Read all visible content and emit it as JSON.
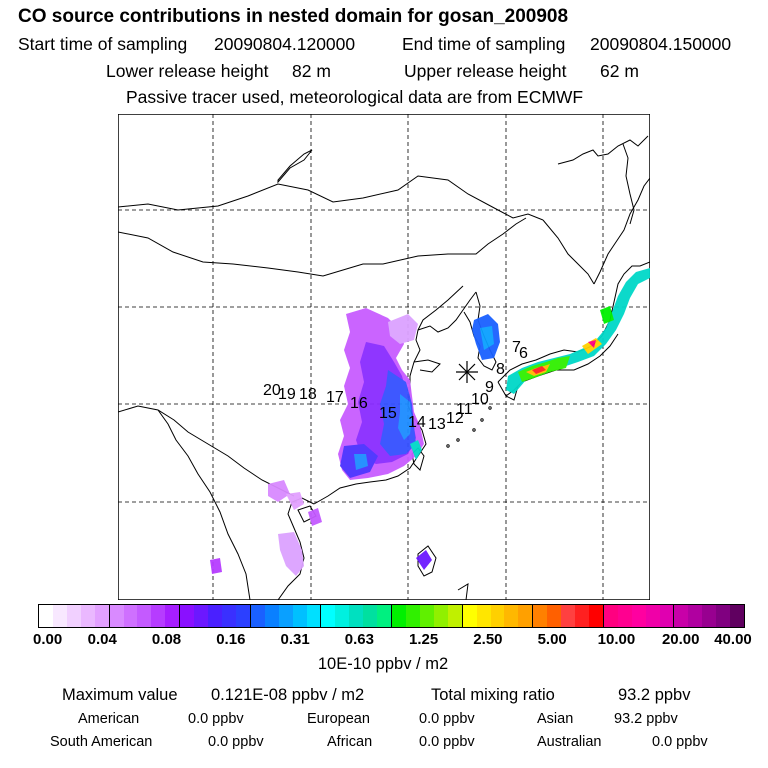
{
  "title": "CO  source contributions in nested domain for gosan_200908",
  "header": {
    "start_label": "Start time of sampling",
    "start_value": "20090804.120000",
    "end_label": "End time of sampling",
    "end_value": "20090804.150000",
    "lower_label": "Lower release height",
    "lower_value": "82 m",
    "upper_label": "Upper release height",
    "upper_value": "62 m",
    "tracer_note": "Passive tracer used, meteorological data are from ECMWF"
  },
  "trajectory_labels": [
    "20",
    "19",
    "18",
    "17",
    "16",
    "15",
    "14",
    "13",
    "12",
    "11",
    "10",
    "9",
    "8",
    "7",
    "6"
  ],
  "colorbar": {
    "tick_labels": [
      "0.00",
      "0.04",
      "0.08",
      "0.16",
      "0.31",
      "0.63",
      "1.25",
      "2.50",
      "5.00",
      "10.00",
      "20.00",
      "40.00"
    ],
    "segment_colors": [
      "#ffffff",
      "#f8e8ff",
      "#f1d0ff",
      "#eab8ff",
      "#e2a0ff",
      "#d98aff",
      "#cf70ff",
      "#c45aff",
      "#b63cff",
      "#a61eff",
      "#8a10ff",
      "#6c18ff",
      "#4a20ff",
      "#3a30ff",
      "#2c40ff",
      "#1a60ff",
      "#0a80ff",
      "#0aa0ff",
      "#00c0ff",
      "#00e0ff",
      "#00ffff",
      "#00f0e0",
      "#00e0c0",
      "#00e0a0",
      "#00f080",
      "#00f000",
      "#30f000",
      "#60f000",
      "#90f000",
      "#c0f000",
      "#ffff00",
      "#ffe600",
      "#ffd000",
      "#ffb800",
      "#ffa000",
      "#ff8000",
      "#ff6000",
      "#ff4040",
      "#ff2020",
      "#ff0000",
      "#ff0080",
      "#ff0090",
      "#ff00a0",
      "#f000a8",
      "#e000b0",
      "#c800a8",
      "#b000a0",
      "#980090",
      "#800080",
      "#600060"
    ],
    "unit": "10E-10 ppbv / m2"
  },
  "stats": {
    "max_label": "Maximum value",
    "max_value": "0.121E-08 ppbv / m2",
    "total_label": "Total mixing ratio",
    "total_value": "93.2 ppbv",
    "regions": [
      {
        "name": "American",
        "value": "0.0 ppbv"
      },
      {
        "name": "European",
        "value": "0.0 ppbv"
      },
      {
        "name": "Asian",
        "value": "93.2 ppbv"
      },
      {
        "name": "South American",
        "value": "0.0 ppbv"
      },
      {
        "name": "African",
        "value": "0.0 ppbv"
      },
      {
        "name": "Australian",
        "value": "0.0 ppbv"
      }
    ]
  }
}
